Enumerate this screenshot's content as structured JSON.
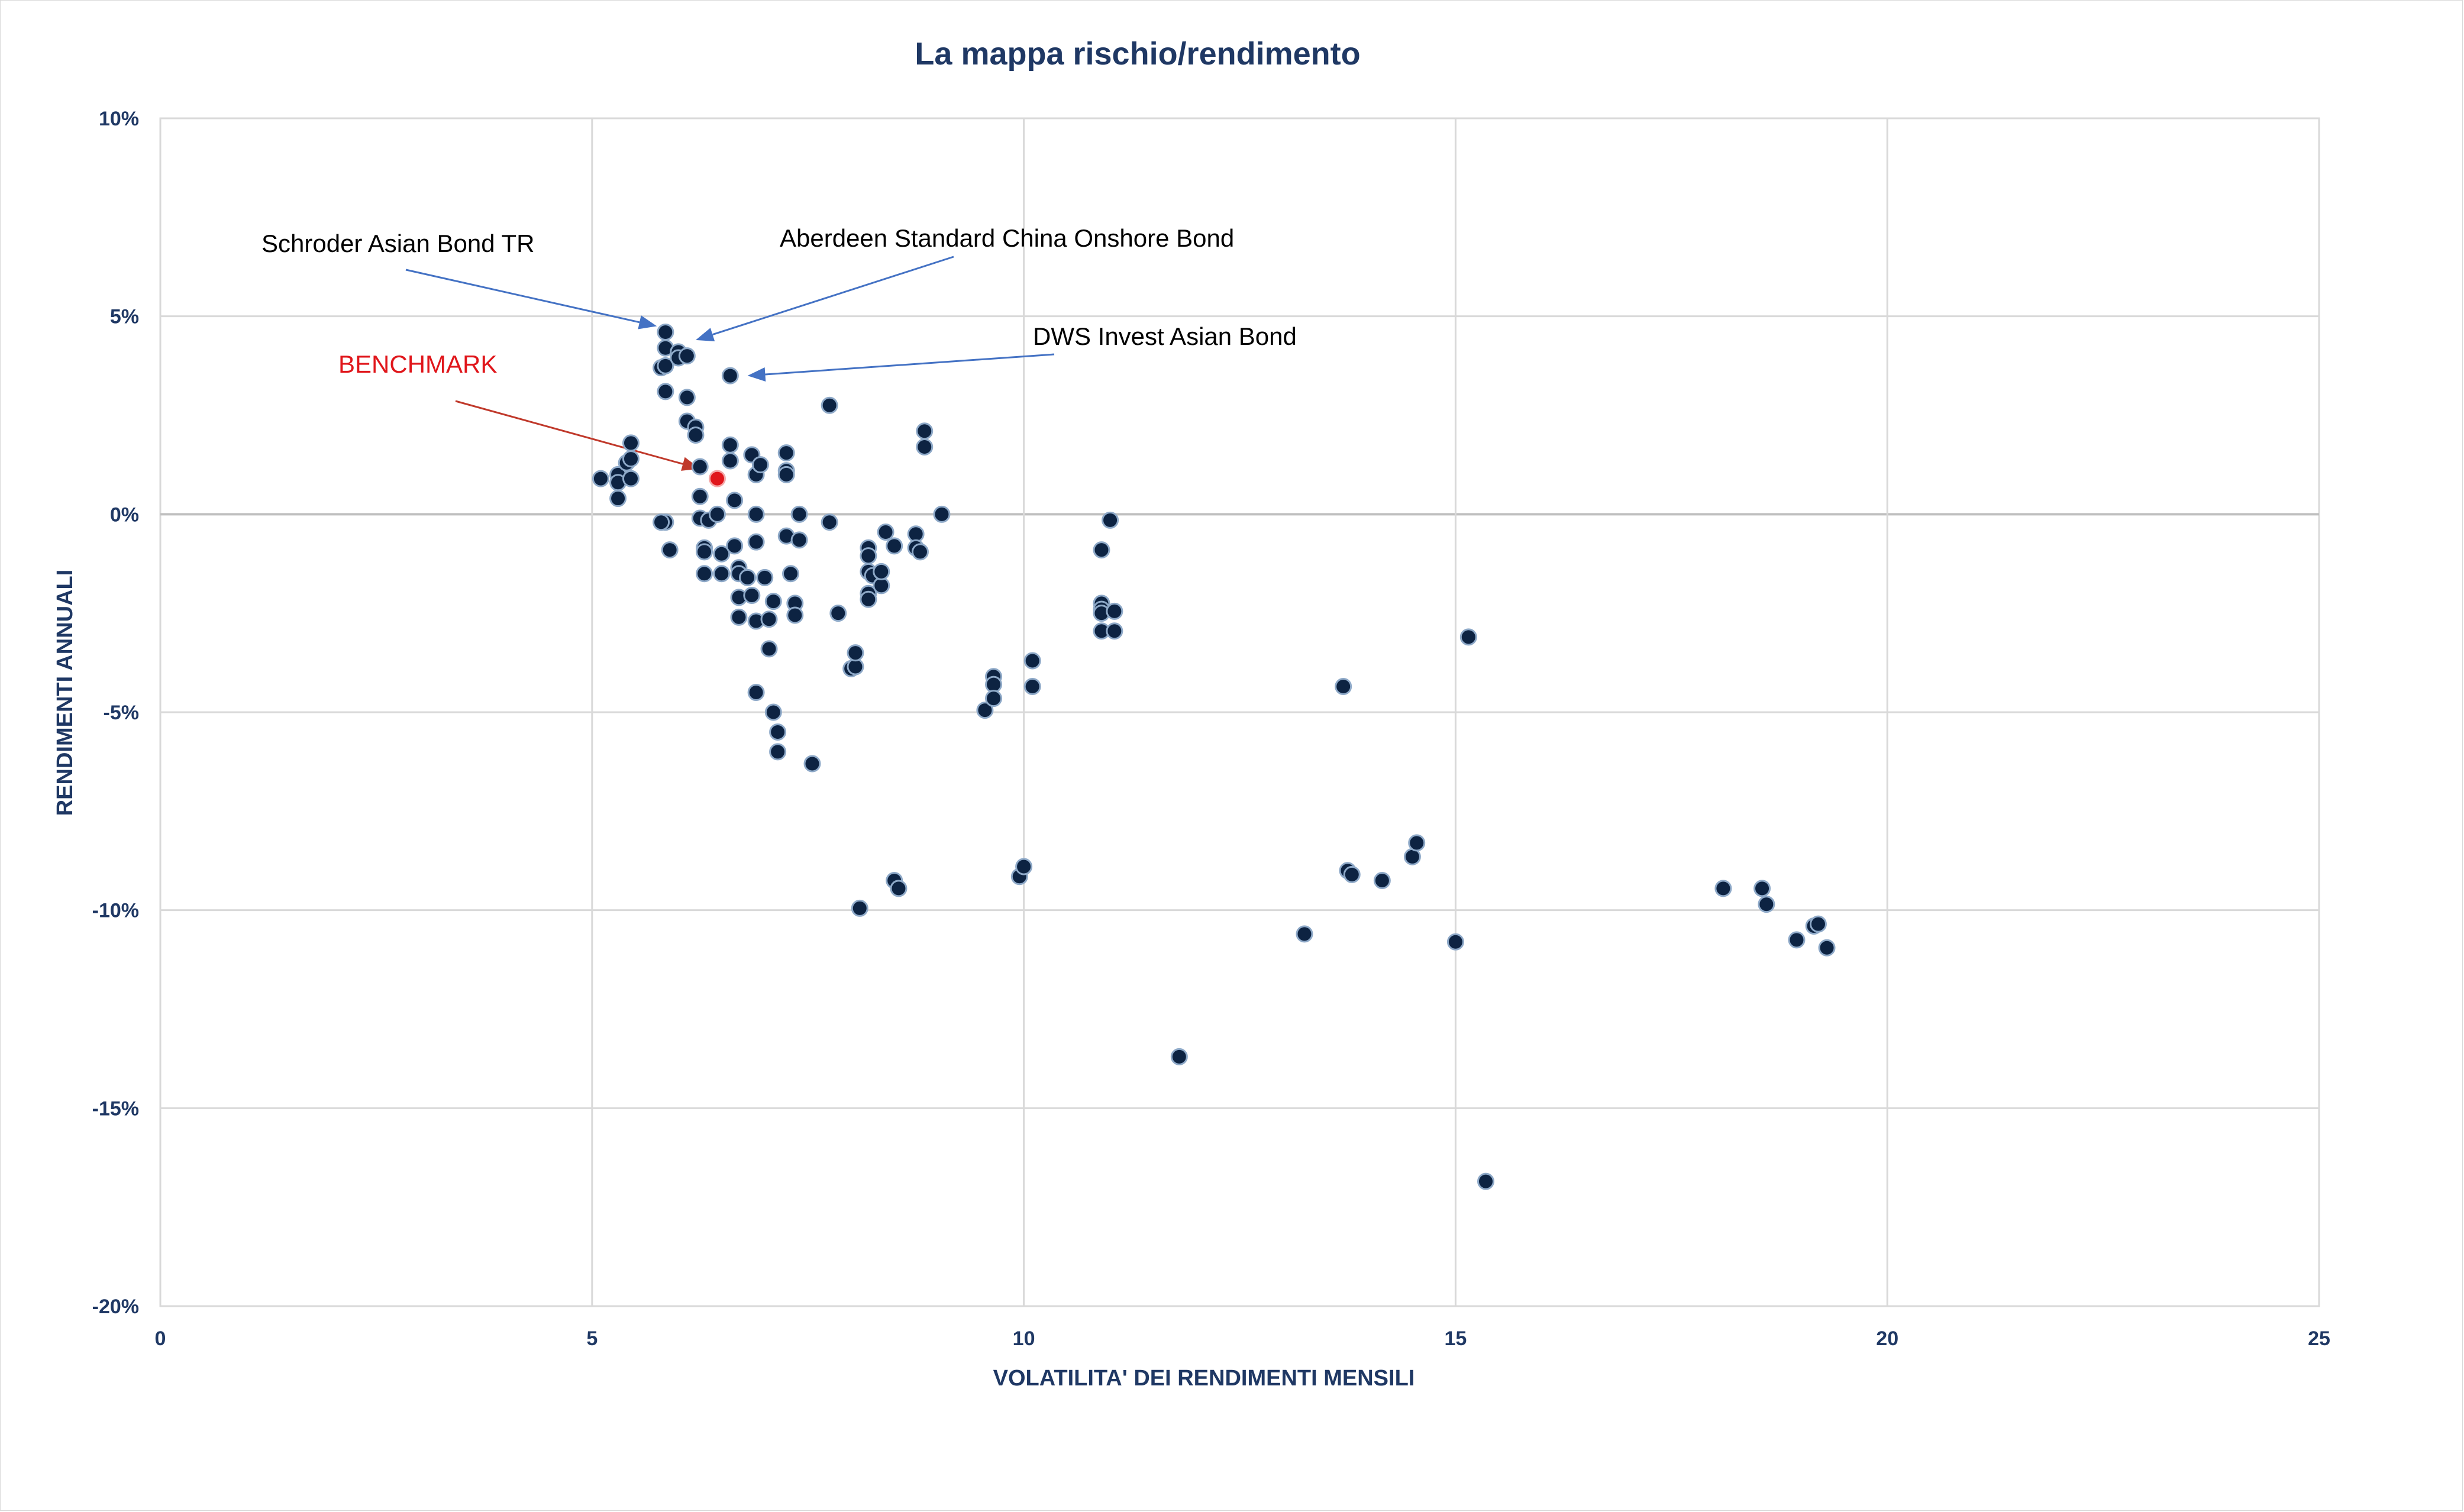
{
  "chart_data": {
    "type": "scatter",
    "title": "La mappa rischio/rendimento",
    "xlabel": "VOLATILITA' DEI RENDIMENTI MENSILI",
    "ylabel": "RENDIMENTI ANNUALI",
    "xlim": [
      0,
      25
    ],
    "ylim": [
      -20,
      10
    ],
    "x_ticks": [
      0,
      5,
      10,
      15,
      20,
      25
    ],
    "x_tick_labels": [
      "0",
      "5",
      "10",
      "15",
      "20",
      "25"
    ],
    "y_ticks": [
      10,
      5,
      0,
      -5,
      -10,
      -15,
      -20
    ],
    "y_tick_labels": [
      "10%",
      "5%",
      "0%",
      "-5%",
      "-10%",
      "-15%",
      "-20%"
    ],
    "grid": true,
    "legend": "none",
    "colors": {
      "points": "#0d2342",
      "point_outline": "#8ea9c8",
      "benchmark": "#e0161b",
      "arrow": "#4472c4",
      "benchmark_arrow": "#c0392b",
      "grid": "#d9d9d9",
      "text": "#1f3864"
    },
    "points": [
      [
        5.1,
        0.9
      ],
      [
        5.3,
        1.0
      ],
      [
        5.3,
        0.8
      ],
      [
        5.3,
        0.4
      ],
      [
        5.4,
        1.3
      ],
      [
        5.45,
        1.8
      ],
      [
        5.45,
        1.4
      ],
      [
        5.45,
        0.9
      ],
      [
        5.8,
        3.7
      ],
      [
        5.85,
        4.6
      ],
      [
        5.85,
        4.2
      ],
      [
        5.85,
        3.75
      ],
      [
        5.85,
        3.1
      ],
      [
        5.85,
        -0.2
      ],
      [
        5.9,
        -0.9
      ],
      [
        5.8,
        -0.2
      ],
      [
        6.0,
        4.1
      ],
      [
        6.0,
        3.95
      ],
      [
        6.1,
        4.0
      ],
      [
        6.1,
        2.95
      ],
      [
        6.1,
        2.35
      ],
      [
        6.2,
        2.2
      ],
      [
        6.2,
        2.0
      ],
      [
        6.25,
        1.2
      ],
      [
        6.25,
        0.45
      ],
      [
        6.25,
        -0.1
      ],
      [
        6.3,
        -0.85
      ],
      [
        6.3,
        -0.95
      ],
      [
        6.3,
        -1.5
      ],
      [
        6.35,
        -0.15
      ],
      [
        6.45,
        0.0
      ],
      [
        6.5,
        -1.0
      ],
      [
        6.5,
        -1.5
      ],
      [
        6.6,
        3.5
      ],
      [
        6.6,
        1.75
      ],
      [
        6.6,
        1.35
      ],
      [
        6.65,
        0.35
      ],
      [
        6.65,
        -0.8
      ],
      [
        6.7,
        -1.35
      ],
      [
        6.7,
        -1.5
      ],
      [
        6.7,
        -2.1
      ],
      [
        6.7,
        -2.6
      ],
      [
        6.8,
        -1.6
      ],
      [
        6.85,
        -2.05
      ],
      [
        6.85,
        1.5
      ],
      [
        6.9,
        1.0
      ],
      [
        6.9,
        0.0
      ],
      [
        6.9,
        -0.7
      ],
      [
        6.9,
        -2.7
      ],
      [
        6.9,
        -4.5
      ],
      [
        6.95,
        1.25
      ],
      [
        7.0,
        -1.6
      ],
      [
        7.05,
        -2.65
      ],
      [
        7.05,
        -3.4
      ],
      [
        7.1,
        -2.2
      ],
      [
        7.1,
        -5.0
      ],
      [
        7.15,
        -5.5
      ],
      [
        7.15,
        -6.0
      ],
      [
        7.25,
        1.1
      ],
      [
        7.25,
        1.0
      ],
      [
        7.25,
        1.55
      ],
      [
        7.25,
        -0.55
      ],
      [
        7.3,
        -1.5
      ],
      [
        7.35,
        -2.25
      ],
      [
        7.35,
        -2.55
      ],
      [
        7.4,
        0.0
      ],
      [
        7.4,
        -0.65
      ],
      [
        7.55,
        -6.3
      ],
      [
        7.75,
        -0.2
      ],
      [
        7.75,
        2.75
      ],
      [
        7.85,
        -2.5
      ],
      [
        8.0,
        -3.9
      ],
      [
        8.05,
        -3.85
      ],
      [
        8.05,
        -3.5
      ],
      [
        8.1,
        -9.95
      ],
      [
        8.2,
        -0.85
      ],
      [
        8.2,
        -1.05
      ],
      [
        8.2,
        -1.45
      ],
      [
        8.2,
        -2.0
      ],
      [
        8.2,
        -2.15
      ],
      [
        8.25,
        -1.55
      ],
      [
        8.35,
        -1.8
      ],
      [
        8.35,
        -1.45
      ],
      [
        8.4,
        -0.45
      ],
      [
        8.5,
        -0.8
      ],
      [
        8.5,
        -9.25
      ],
      [
        8.55,
        -9.45
      ],
      [
        8.75,
        -0.5
      ],
      [
        8.75,
        -0.85
      ],
      [
        8.8,
        -0.95
      ],
      [
        8.85,
        2.1
      ],
      [
        8.85,
        1.7
      ],
      [
        9.05,
        0.0
      ],
      [
        9.55,
        -4.95
      ],
      [
        9.65,
        -4.1
      ],
      [
        9.65,
        -4.3
      ],
      [
        9.65,
        -4.65
      ],
      [
        9.95,
        -9.15
      ],
      [
        10.0,
        -8.9
      ],
      [
        10.1,
        -3.7
      ],
      [
        10.1,
        -4.35
      ],
      [
        10.9,
        -0.9
      ],
      [
        10.9,
        -2.25
      ],
      [
        10.9,
        -2.4
      ],
      [
        10.9,
        -2.5
      ],
      [
        10.9,
        -2.95
      ],
      [
        11.0,
        -0.15
      ],
      [
        11.05,
        -2.45
      ],
      [
        11.05,
        -2.95
      ],
      [
        11.8,
        -13.7
      ],
      [
        13.25,
        -10.6
      ],
      [
        13.7,
        -4.35
      ],
      [
        13.75,
        -9.0
      ],
      [
        13.8,
        -9.1
      ],
      [
        14.15,
        -9.25
      ],
      [
        14.5,
        -8.65
      ],
      [
        14.55,
        -8.3
      ],
      [
        15.0,
        -10.8
      ],
      [
        15.15,
        -3.1
      ],
      [
        15.35,
        -16.85
      ],
      [
        18.1,
        -9.45
      ],
      [
        18.55,
        -9.45
      ],
      [
        18.6,
        -9.85
      ],
      [
        18.95,
        -10.75
      ],
      [
        19.15,
        -10.4
      ],
      [
        19.2,
        -10.35
      ],
      [
        19.3,
        -10.95
      ]
    ],
    "benchmark": {
      "label": "BENCHMARK",
      "x": 6.45,
      "y": 0.9
    },
    "annotations": [
      {
        "text": "Schroder Asian Bond TR",
        "target": [
          5.75,
          4.75
        ]
      },
      {
        "text": "Aberdeen Standard China Onshore Bond",
        "target": [
          6.2,
          4.4
        ]
      },
      {
        "text": "DWS Invest Asian Bond",
        "target": [
          6.8,
          3.5
        ]
      },
      {
        "text": "BENCHMARK",
        "target": [
          6.25,
          1.15
        ]
      }
    ]
  }
}
